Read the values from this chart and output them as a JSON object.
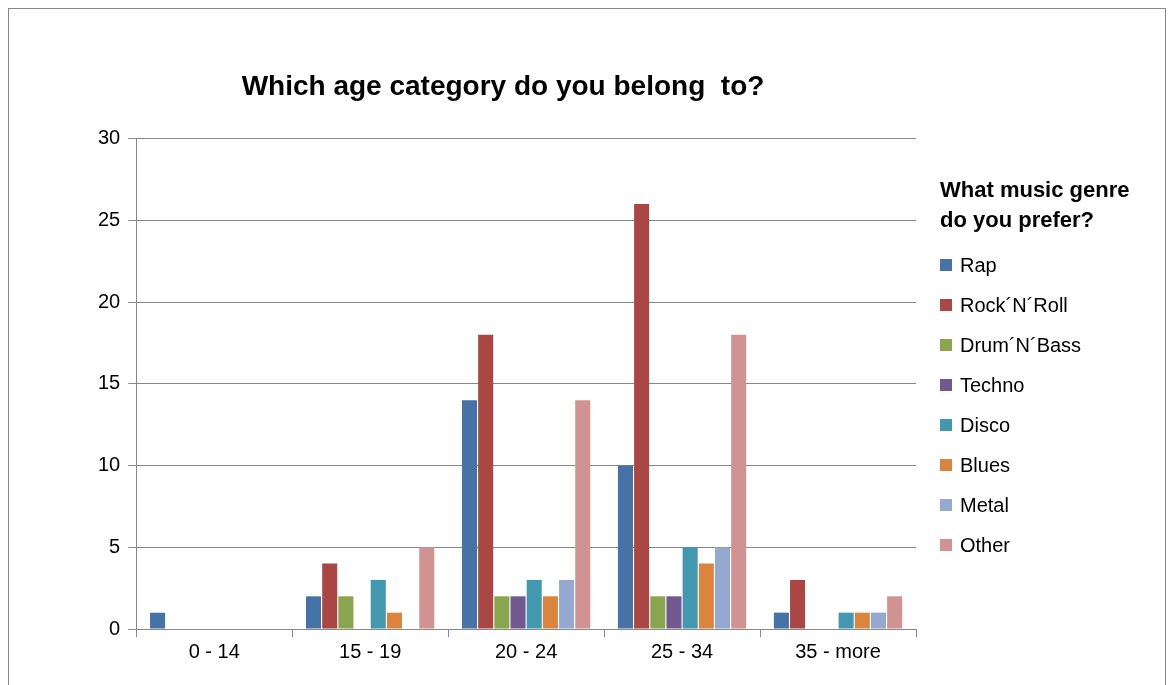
{
  "chart_data": {
    "type": "bar",
    "title": "Which age category do you belong  to?",
    "legend_title": "What music genre do you prefer?",
    "categories": [
      "0 - 14",
      "15 - 19",
      "20 - 24",
      "25 - 34",
      "35 - more"
    ],
    "series": [
      {
        "name": "Rap",
        "color": "#4572a7",
        "values": [
          1,
          2,
          14,
          10,
          1
        ]
      },
      {
        "name": "Rock´N´Roll",
        "color": "#aa4643",
        "values": [
          0,
          4,
          18,
          26,
          3
        ]
      },
      {
        "name": "Drum´N´Bass",
        "color": "#89a54e",
        "values": [
          0,
          2,
          2,
          2,
          0
        ]
      },
      {
        "name": "Techno",
        "color": "#71588f",
        "values": [
          0,
          0,
          2,
          2,
          0
        ]
      },
      {
        "name": "Disco",
        "color": "#4198af",
        "values": [
          0,
          3,
          3,
          5,
          1
        ]
      },
      {
        "name": "Blues",
        "color": "#db843d",
        "values": [
          0,
          1,
          2,
          4,
          1
        ]
      },
      {
        "name": "Metal",
        "color": "#93a9cf",
        "values": [
          0,
          0,
          3,
          5,
          1
        ]
      },
      {
        "name": "Other",
        "color": "#d19392",
        "values": [
          0,
          5,
          14,
          18,
          2
        ]
      }
    ],
    "ylim": [
      0,
      30
    ],
    "yticks": [
      0,
      5,
      10,
      15,
      20,
      25,
      30
    ],
    "grid": "y",
    "legend": "right"
  }
}
